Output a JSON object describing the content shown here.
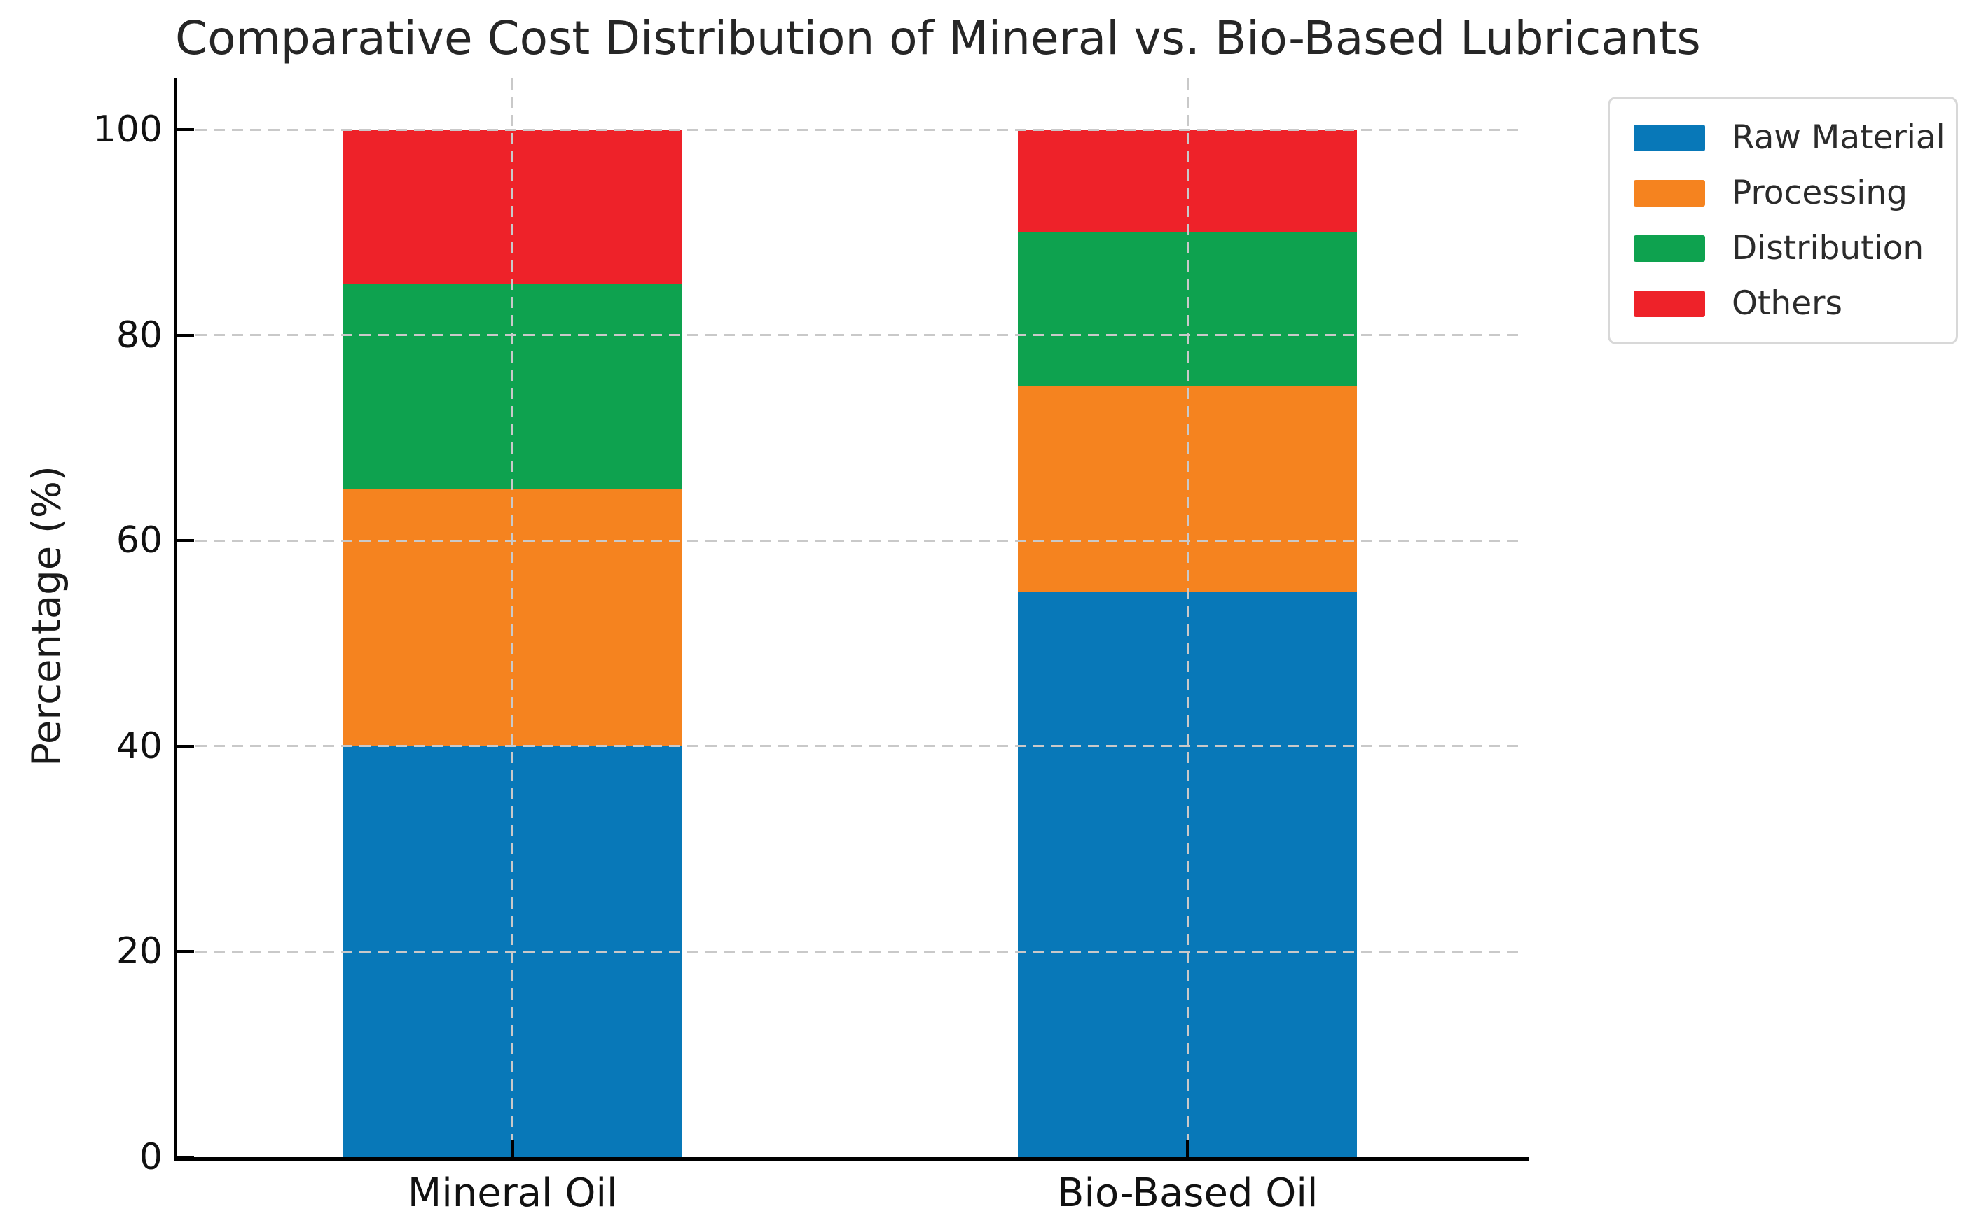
{
  "chart_data": {
    "type": "bar",
    "stacked": true,
    "title": "Comparative Cost Distribution of Mineral vs. Bio-Based Lubricants",
    "xlabel": "",
    "ylabel": "Percentage (%)",
    "categories": [
      "Mineral Oil",
      "Bio-Based Oil"
    ],
    "series": [
      {
        "name": "Raw Material",
        "color": "#0878B8",
        "values": [
          40,
          55
        ]
      },
      {
        "name": "Processing",
        "color": "#F5831F",
        "values": [
          25,
          20
        ]
      },
      {
        "name": "Distribution",
        "color": "#0EA24F",
        "values": [
          20,
          15
        ]
      },
      {
        "name": "Others",
        "color": "#EE2229",
        "values": [
          15,
          10
        ]
      }
    ],
    "ylim": [
      0,
      100
    ],
    "yticks": [
      0,
      20,
      40,
      60,
      80,
      100
    ],
    "grid": true,
    "grid_style": "dashed",
    "legend_position": "upper right"
  }
}
